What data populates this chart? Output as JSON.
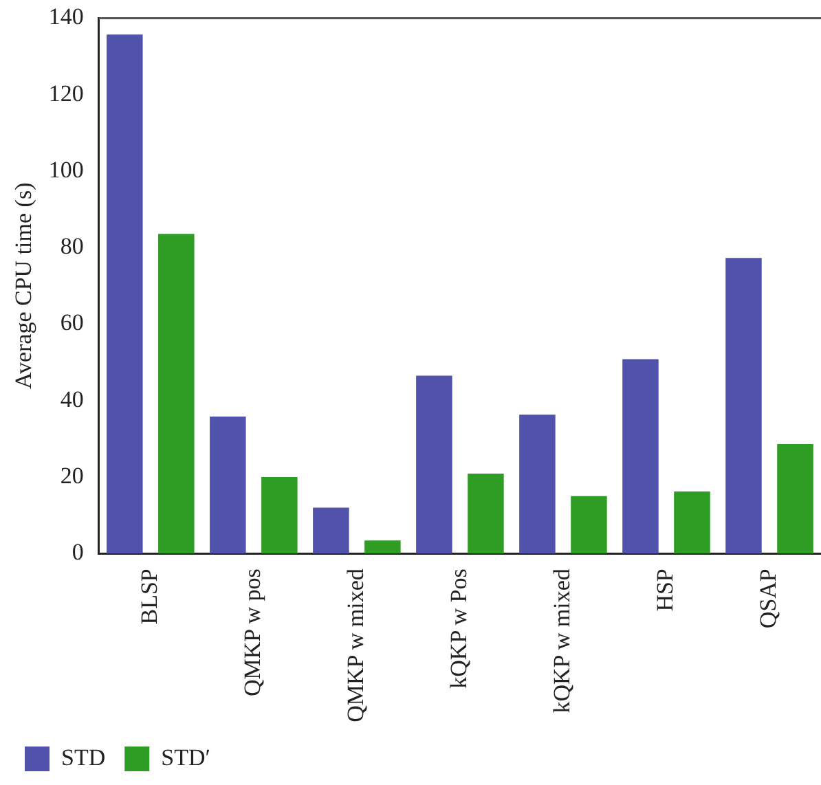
{
  "chart_data": {
    "type": "bar",
    "ylabel": "Average CPU time (s)",
    "categories": [
      "BLSP",
      "QMKP w pos",
      "QMKP w mixed",
      "kQKP w Pos",
      "kQKP w mixed",
      "HSP",
      "QSAP"
    ],
    "series": [
      {
        "name": "STD",
        "color": "#5152ac",
        "values": [
          135.7,
          35.8,
          12,
          46.5,
          36.3,
          50.8,
          77.3
        ]
      },
      {
        "name": "STD′",
        "color": "#2f9c24",
        "values": [
          83.6,
          20,
          3.4,
          20.9,
          15,
          16.2,
          28.6
        ]
      }
    ],
    "ylim": [
      0,
      140
    ],
    "yticks": [
      0,
      20,
      40,
      60,
      80,
      100,
      120,
      140
    ],
    "grid": false,
    "legend": "bottom left"
  }
}
